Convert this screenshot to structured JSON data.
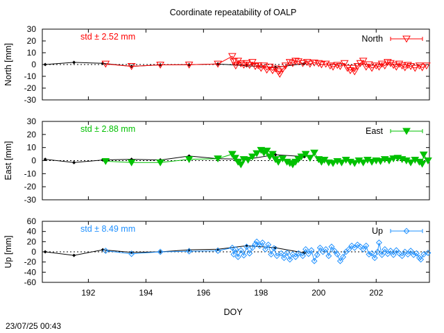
{
  "chart_data": {
    "type": "scatter",
    "title": "Coordinate repeatability of OALP",
    "xlabel": "DOY",
    "timestamp": "23/07/25 00:43",
    "xlim": [
      190.4,
      203.85
    ],
    "xticks": [
      192,
      194,
      196,
      198,
      200,
      202
    ],
    "panels": [
      {
        "id": "north",
        "ylabel": "North [mm]",
        "ylim": [
          -30,
          30
        ],
        "yticks": [
          30,
          20,
          10,
          0,
          -10,
          -20,
          -30
        ],
        "std_text": "std ± 2.52 mm",
        "legend": "North",
        "color": "#ff0000",
        "marker": "triangle-down-open",
        "black_line": [
          [
            190.5,
            0.0
          ],
          [
            191.5,
            1.8
          ],
          [
            192.5,
            1.0
          ],
          [
            193.5,
            -1.5
          ],
          [
            194.5,
            -0.3
          ],
          [
            195.5,
            -0.2
          ],
          [
            196.5,
            0.5
          ],
          [
            197.5,
            -1.0
          ],
          [
            198.5,
            -2.5
          ],
          [
            199.5,
            0.8
          ]
        ],
        "series": [
          [
            192.6,
            0.5
          ],
          [
            193.5,
            -1.5
          ],
          [
            194.5,
            -0.3
          ],
          [
            195.5,
            -0.2
          ],
          [
            196.5,
            0.5
          ],
          [
            197.0,
            7.0
          ],
          [
            197.05,
            2.5
          ],
          [
            197.12,
            -1.0
          ],
          [
            197.2,
            3.0
          ],
          [
            197.3,
            0.8
          ],
          [
            197.4,
            -0.3
          ],
          [
            197.5,
            1.0
          ],
          [
            197.6,
            -0.5
          ],
          [
            197.7,
            2.0
          ],
          [
            197.8,
            -1.5
          ],
          [
            197.9,
            -0.8
          ],
          [
            198.0,
            -3.0
          ],
          [
            198.1,
            -1.0
          ],
          [
            198.2,
            -4.5
          ],
          [
            198.3,
            -2.0
          ],
          [
            198.4,
            -5.0
          ],
          [
            198.5,
            -3.5
          ],
          [
            198.6,
            -6.0
          ],
          [
            198.65,
            -8.0
          ],
          [
            198.75,
            -4.0
          ],
          [
            198.85,
            -1.0
          ],
          [
            199.0,
            2.0
          ],
          [
            199.1,
            1.0
          ],
          [
            199.2,
            3.0
          ],
          [
            199.3,
            2.5
          ],
          [
            199.45,
            1.0
          ],
          [
            199.6,
            2.0
          ],
          [
            199.7,
            0.5
          ],
          [
            199.85,
            1.5
          ],
          [
            200.0,
            1.0
          ],
          [
            200.1,
            0.0
          ],
          [
            200.25,
            0.5
          ],
          [
            200.4,
            -1.0
          ],
          [
            200.5,
            -2.0
          ],
          [
            200.65,
            -0.5
          ],
          [
            200.75,
            -1.5
          ],
          [
            200.9,
            1.0
          ],
          [
            201.0,
            -3.0
          ],
          [
            201.1,
            -5.0
          ],
          [
            201.2,
            -3.0
          ],
          [
            201.25,
            -6.0
          ],
          [
            201.35,
            -1.5
          ],
          [
            201.45,
            1.0
          ],
          [
            201.55,
            3.0
          ],
          [
            201.65,
            -2.0
          ],
          [
            201.75,
            0.0
          ],
          [
            201.85,
            -3.0
          ],
          [
            202.0,
            -1.0
          ],
          [
            202.1,
            -2.0
          ],
          [
            202.2,
            0.5
          ],
          [
            202.3,
            -1.0
          ],
          [
            202.4,
            2.0
          ],
          [
            202.5,
            1.0
          ],
          [
            202.6,
            -0.5
          ],
          [
            202.7,
            -2.0
          ],
          [
            202.8,
            0.5
          ],
          [
            202.9,
            -1.0
          ],
          [
            203.0,
            -2.5
          ],
          [
            203.1,
            -0.5
          ],
          [
            203.2,
            -1.5
          ],
          [
            203.35,
            -3.0
          ],
          [
            203.5,
            -1.0
          ],
          [
            203.6,
            -2.5
          ],
          [
            203.75,
            -1.0
          ]
        ]
      },
      {
        "id": "east",
        "ylabel": "East [mm]",
        "ylim": [
          -30,
          30
        ],
        "yticks": [
          30,
          20,
          10,
          0,
          -10,
          -20,
          -30
        ],
        "std_text": "std ± 2.88 mm",
        "legend": "East",
        "color": "#00c000",
        "marker": "triangle-down-filled",
        "black_line": [
          [
            190.5,
            1.0
          ],
          [
            191.5,
            -1.5
          ],
          [
            192.5,
            0.5
          ],
          [
            193.5,
            1.0
          ],
          [
            194.5,
            0.5
          ],
          [
            195.5,
            3.5
          ],
          [
            196.5,
            1.5
          ],
          [
            197.5,
            1.0
          ],
          [
            198.5,
            4.5
          ],
          [
            199.5,
            3.0
          ]
        ],
        "series": [
          [
            192.6,
            -0.5
          ],
          [
            193.5,
            -1.5
          ],
          [
            194.5,
            -1.5
          ],
          [
            195.5,
            1.0
          ],
          [
            196.5,
            1.5
          ],
          [
            197.0,
            5.0
          ],
          [
            197.1,
            2.0
          ],
          [
            197.2,
            -1.0
          ],
          [
            197.3,
            -3.0
          ],
          [
            197.4,
            1.0
          ],
          [
            197.55,
            0.5
          ],
          [
            197.7,
            3.0
          ],
          [
            197.85,
            5.5
          ],
          [
            198.0,
            8.0
          ],
          [
            198.1,
            6.0
          ],
          [
            198.2,
            7.5
          ],
          [
            198.3,
            3.0
          ],
          [
            198.4,
            5.0
          ],
          [
            198.5,
            1.0
          ],
          [
            198.6,
            -1.0
          ],
          [
            198.75,
            1.5
          ],
          [
            198.9,
            -1.0
          ],
          [
            199.0,
            -2.0
          ],
          [
            199.1,
            -3.0
          ],
          [
            199.2,
            -1.0
          ],
          [
            199.3,
            1.0
          ],
          [
            199.4,
            3.0
          ],
          [
            199.55,
            5.0
          ],
          [
            199.7,
            2.0
          ],
          [
            199.85,
            6.0
          ],
          [
            200.0,
            1.0
          ],
          [
            200.1,
            -1.0
          ],
          [
            200.2,
            0.5
          ],
          [
            200.35,
            -1.5
          ],
          [
            200.5,
            -2.0
          ],
          [
            200.65,
            -0.5
          ],
          [
            200.8,
            -1.5
          ],
          [
            200.95,
            0.5
          ],
          [
            201.1,
            -1.0
          ],
          [
            201.25,
            -2.0
          ],
          [
            201.4,
            0.0
          ],
          [
            201.55,
            -1.5
          ],
          [
            201.7,
            0.5
          ],
          [
            201.85,
            -1.0
          ],
          [
            202.0,
            0.0
          ],
          [
            202.15,
            -0.5
          ],
          [
            202.3,
            1.0
          ],
          [
            202.45,
            0.0
          ],
          [
            202.6,
            1.5
          ],
          [
            202.75,
            2.0
          ],
          [
            202.9,
            1.0
          ],
          [
            203.05,
            0.0
          ],
          [
            203.2,
            -1.5
          ],
          [
            203.35,
            0.5
          ],
          [
            203.5,
            -1.0
          ],
          [
            203.6,
            -2.5
          ],
          [
            203.65,
            4.5
          ],
          [
            203.8,
            0.0
          ]
        ]
      },
      {
        "id": "up",
        "ylabel": "Up [mm]",
        "ylim": [
          -60,
          60
        ],
        "yticks": [
          60,
          40,
          20,
          0,
          -20,
          -40,
          -60
        ],
        "std_text": "std ± 8.49 mm",
        "legend": "Up",
        "color": "#1e90ff",
        "marker": "diamond-open",
        "black_line": [
          [
            190.5,
            0.0
          ],
          [
            191.5,
            -7.0
          ],
          [
            192.5,
            4.0
          ],
          [
            193.5,
            -1.0
          ],
          [
            194.5,
            0.0
          ],
          [
            195.5,
            4.0
          ],
          [
            196.5,
            5.0
          ],
          [
            197.5,
            12.0
          ],
          [
            198.5,
            8.0
          ],
          [
            199.5,
            -2.0
          ]
        ],
        "series": [
          [
            192.6,
            2.0
          ],
          [
            193.5,
            -4.0
          ],
          [
            194.5,
            0.0
          ],
          [
            195.5,
            1.0
          ],
          [
            196.5,
            2.0
          ],
          [
            197.0,
            8.0
          ],
          [
            197.05,
            -5.0
          ],
          [
            197.12,
            5.0
          ],
          [
            197.2,
            -10.0
          ],
          [
            197.3,
            3.0
          ],
          [
            197.4,
            -7.0
          ],
          [
            197.5,
            10.0
          ],
          [
            197.6,
            -3.0
          ],
          [
            197.7,
            8.0
          ],
          [
            197.8,
            15.0
          ],
          [
            197.85,
            20.0
          ],
          [
            197.95,
            12.0
          ],
          [
            198.05,
            18.0
          ],
          [
            198.15,
            5.0
          ],
          [
            198.25,
            14.0
          ],
          [
            198.35,
            -5.0
          ],
          [
            198.45,
            7.0
          ],
          [
            198.55,
            -8.0
          ],
          [
            198.7,
            -3.0
          ],
          [
            198.8,
            -12.0
          ],
          [
            198.9,
            -2.0
          ],
          [
            199.0,
            -15.0
          ],
          [
            199.1,
            -5.0
          ],
          [
            199.2,
            -10.0
          ],
          [
            199.3,
            -3.0
          ],
          [
            199.45,
            -8.0
          ],
          [
            199.55,
            5.0
          ],
          [
            199.65,
            -4.0
          ],
          [
            199.75,
            3.0
          ],
          [
            199.85,
            -18.0
          ],
          [
            199.95,
            -6.0
          ],
          [
            200.05,
            8.0
          ],
          [
            200.15,
            0.0
          ],
          [
            200.25,
            5.0
          ],
          [
            200.35,
            -8.0
          ],
          [
            200.45,
            10.0
          ],
          [
            200.55,
            2.0
          ],
          [
            200.65,
            -5.0
          ],
          [
            200.75,
            -18.0
          ],
          [
            200.85,
            -10.0
          ],
          [
            200.95,
            0.0
          ],
          [
            201.05,
            5.0
          ],
          [
            201.15,
            12.0
          ],
          [
            201.25,
            8.0
          ],
          [
            201.35,
            14.0
          ],
          [
            201.45,
            10.0
          ],
          [
            201.55,
            5.0
          ],
          [
            201.65,
            12.0
          ],
          [
            201.75,
            -5.0
          ],
          [
            201.85,
            -3.0
          ],
          [
            201.95,
            -12.0
          ],
          [
            202.05,
            0.0
          ],
          [
            202.1,
            18.0
          ],
          [
            202.2,
            -6.0
          ],
          [
            202.3,
            5.0
          ],
          [
            202.4,
            -4.0
          ],
          [
            202.5,
            2.0
          ],
          [
            202.6,
            -6.0
          ],
          [
            202.7,
            3.0
          ],
          [
            202.8,
            -3.0
          ],
          [
            202.9,
            -8.0
          ],
          [
            203.0,
            0.0
          ],
          [
            203.1,
            -5.0
          ],
          [
            203.2,
            2.0
          ],
          [
            203.3,
            -6.0
          ],
          [
            203.4,
            -3.0
          ],
          [
            203.5,
            -12.0
          ],
          [
            203.55,
            -15.0
          ],
          [
            203.65,
            -5.0
          ],
          [
            203.8,
            -2.0
          ]
        ]
      }
    ]
  }
}
